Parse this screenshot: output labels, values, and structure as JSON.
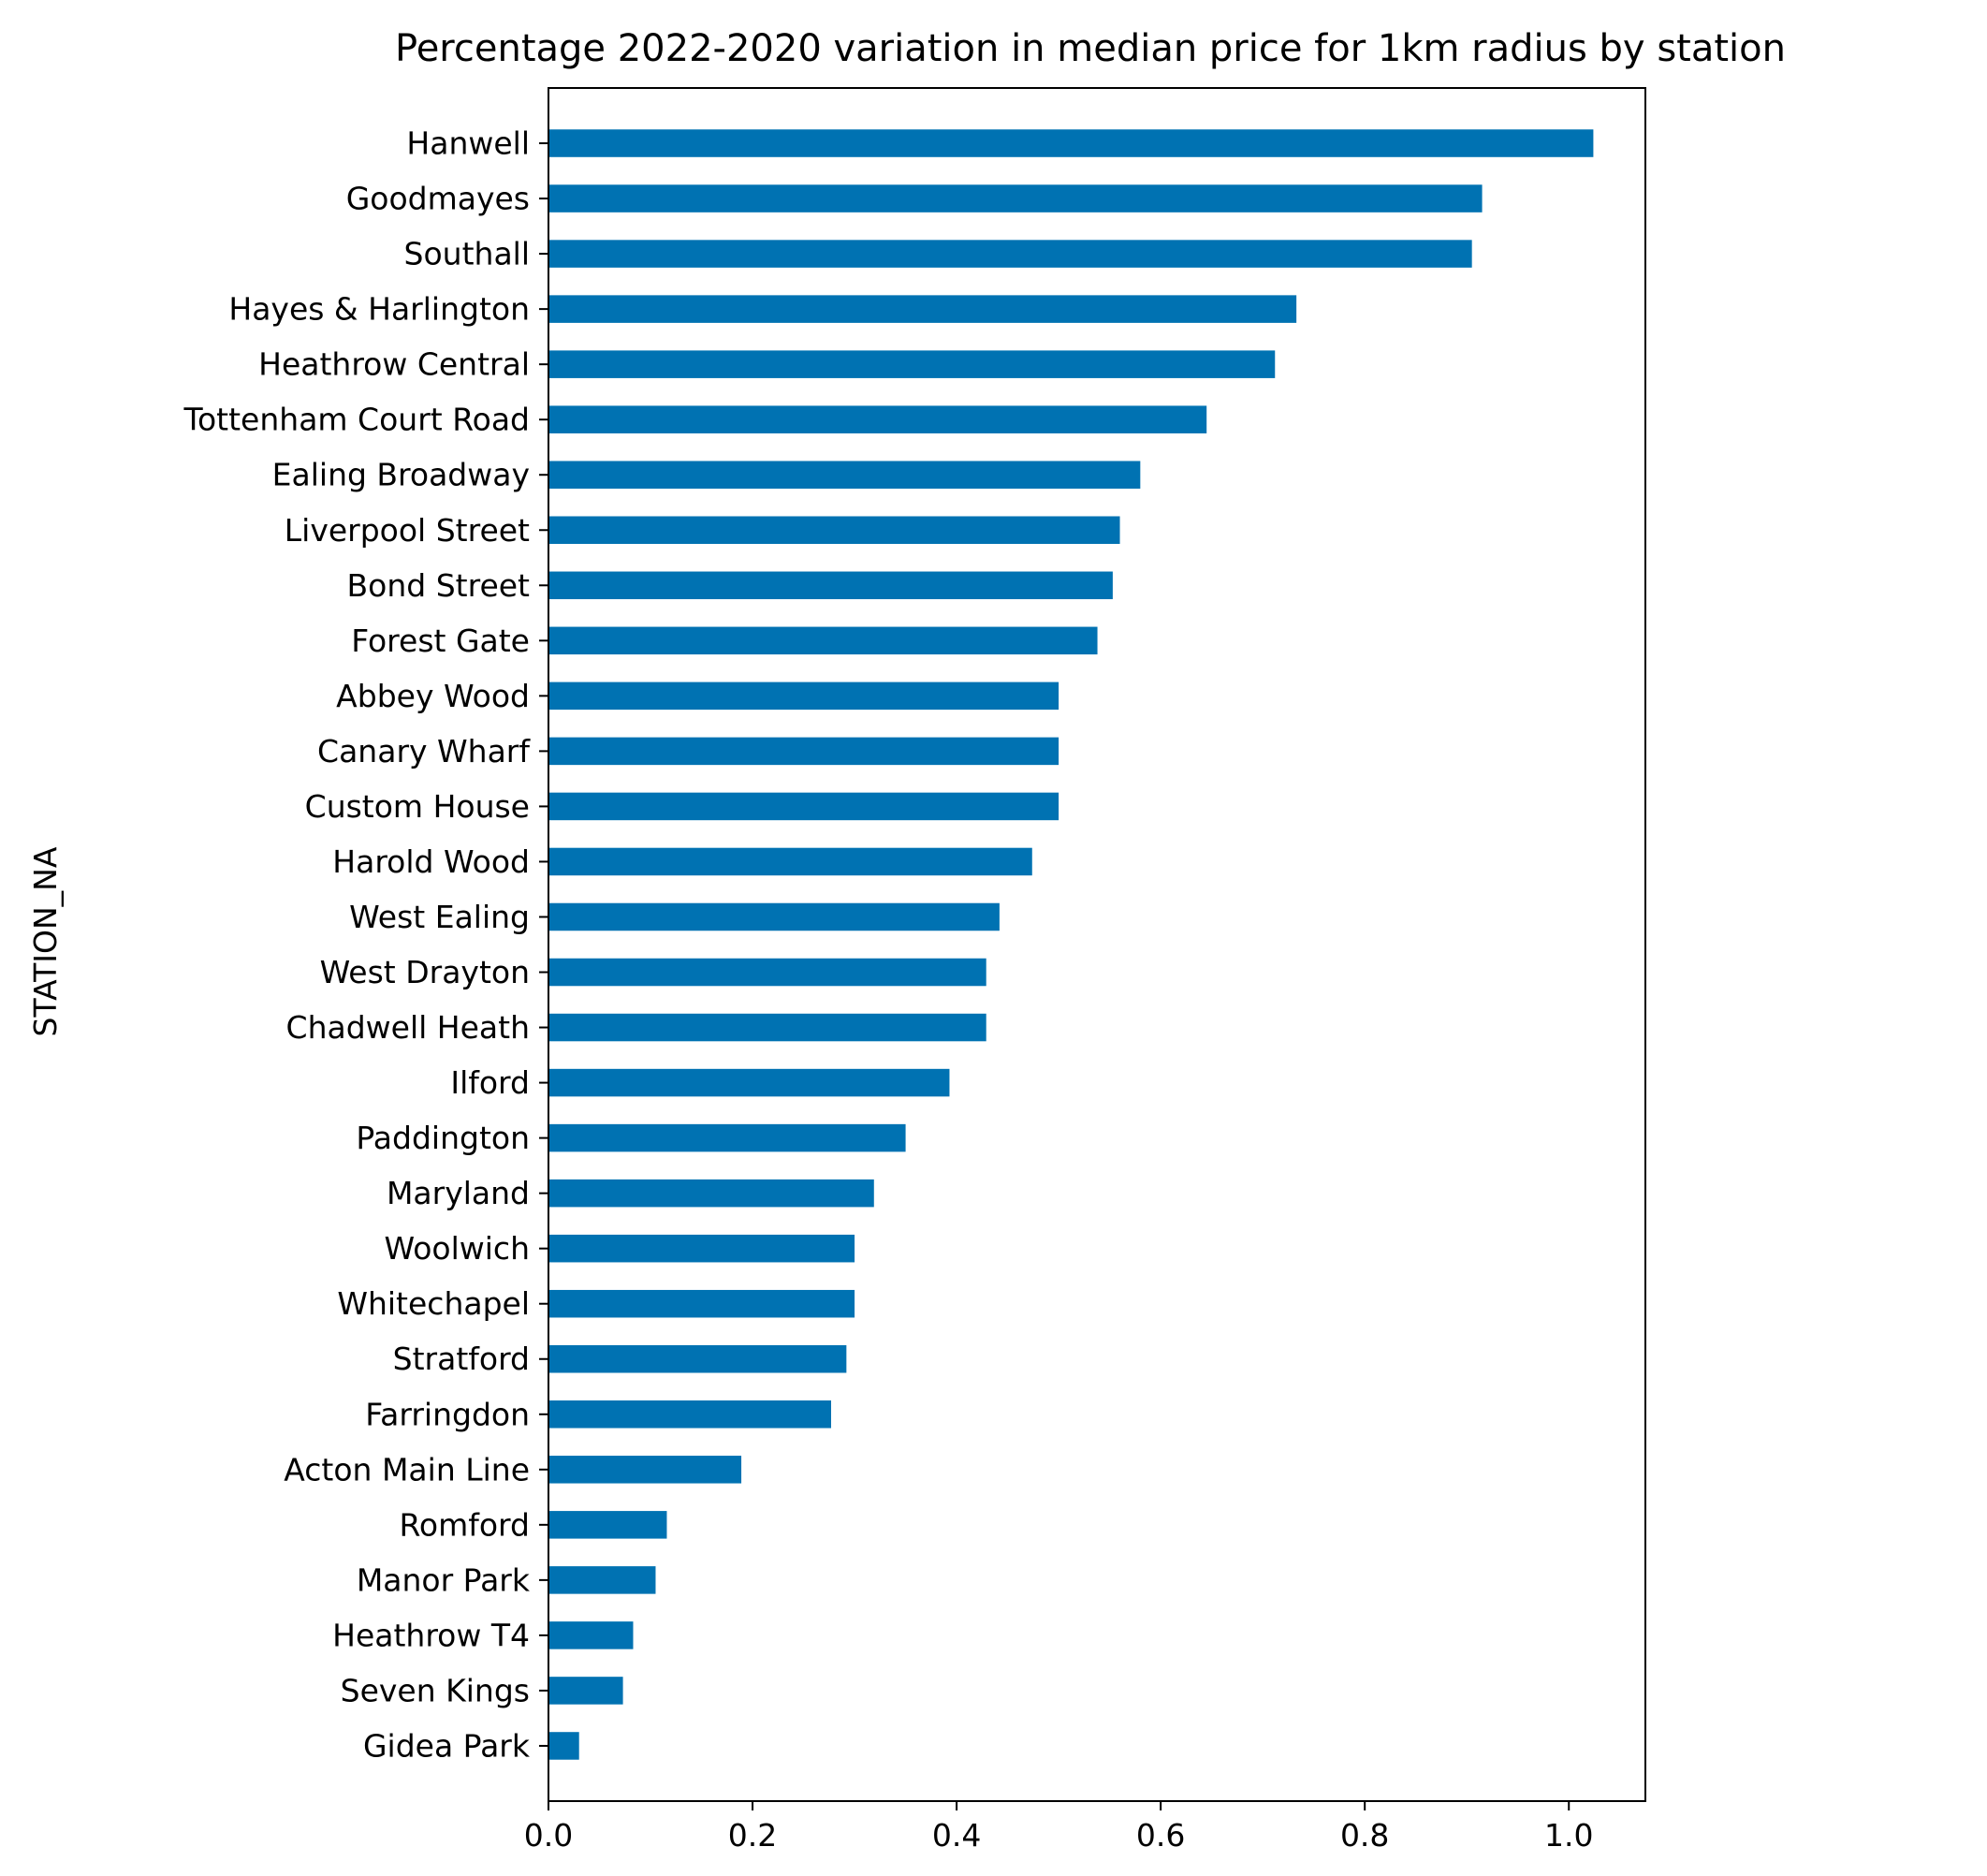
{
  "chart_data": {
    "type": "bar",
    "orientation": "horizontal",
    "title": "Percentage 2022-2020 variation in median price for 1km radius by station",
    "xlabel": "",
    "ylabel": "STATION_NA",
    "xlim": [
      0,
      1.075
    ],
    "xticks": [
      "0.0",
      "0.2",
      "0.4",
      "0.6",
      "0.8",
      "1.0"
    ],
    "grid": false,
    "legend": "none",
    "bar_color": "#0072b2",
    "categories": [
      "Hanwell",
      "Goodmayes",
      "Southall",
      "Hayes & Harlington",
      "Heathrow Central",
      "Tottenham Court Road",
      "Ealing Broadway",
      "Liverpool Street",
      "Bond Street",
      "Forest Gate",
      "Abbey Wood",
      "Canary Wharf",
      "Custom House",
      "Harold Wood",
      "West Ealing",
      "West Drayton",
      "Chadwell Heath",
      "Ilford",
      "Paddington",
      "Maryland",
      "Woolwich",
      "Whitechapel",
      "Stratford",
      "Farringdon",
      "Acton Main Line",
      "Romford",
      "Manor Park",
      "Heathrow T4",
      "Seven Kings",
      "Gidea Park"
    ],
    "values": [
      1.024,
      0.915,
      0.905,
      0.733,
      0.712,
      0.645,
      0.58,
      0.56,
      0.553,
      0.538,
      0.5,
      0.5,
      0.5,
      0.474,
      0.442,
      0.429,
      0.429,
      0.393,
      0.35,
      0.319,
      0.3,
      0.3,
      0.292,
      0.277,
      0.189,
      0.116,
      0.105,
      0.083,
      0.073,
      0.03
    ]
  }
}
